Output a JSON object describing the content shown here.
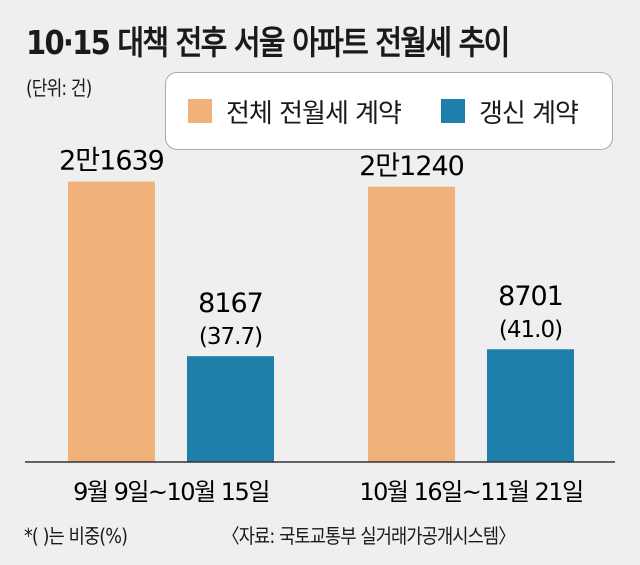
{
  "chart_data": {
    "type": "bar",
    "title": "10·15 대책 전후 서울 아파트 전월세 추이",
    "unit": "(단위: 건)",
    "categories": [
      "9월 9일~10월 15일",
      "10월 16일~11월 21일"
    ],
    "series": [
      {
        "name": "전체 전월세 계약",
        "color": "#f0b27a",
        "values": [
          21639,
          21240
        ],
        "labels": [
          "2만1639",
          "2만1240"
        ]
      },
      {
        "name": "갱신 계약",
        "color": "#1f7fab",
        "values": [
          8167,
          8701
        ],
        "labels": [
          "8167",
          "8701"
        ],
        "shares": [
          "(37.7)",
          "(41.0)"
        ]
      }
    ],
    "ylim": [
      0,
      24000
    ],
    "grid": false,
    "legend": "top-right",
    "note": "*(   )는 비중(%)",
    "source": "〈자료: 국토교통부 실거래가공개시스템〉"
  }
}
